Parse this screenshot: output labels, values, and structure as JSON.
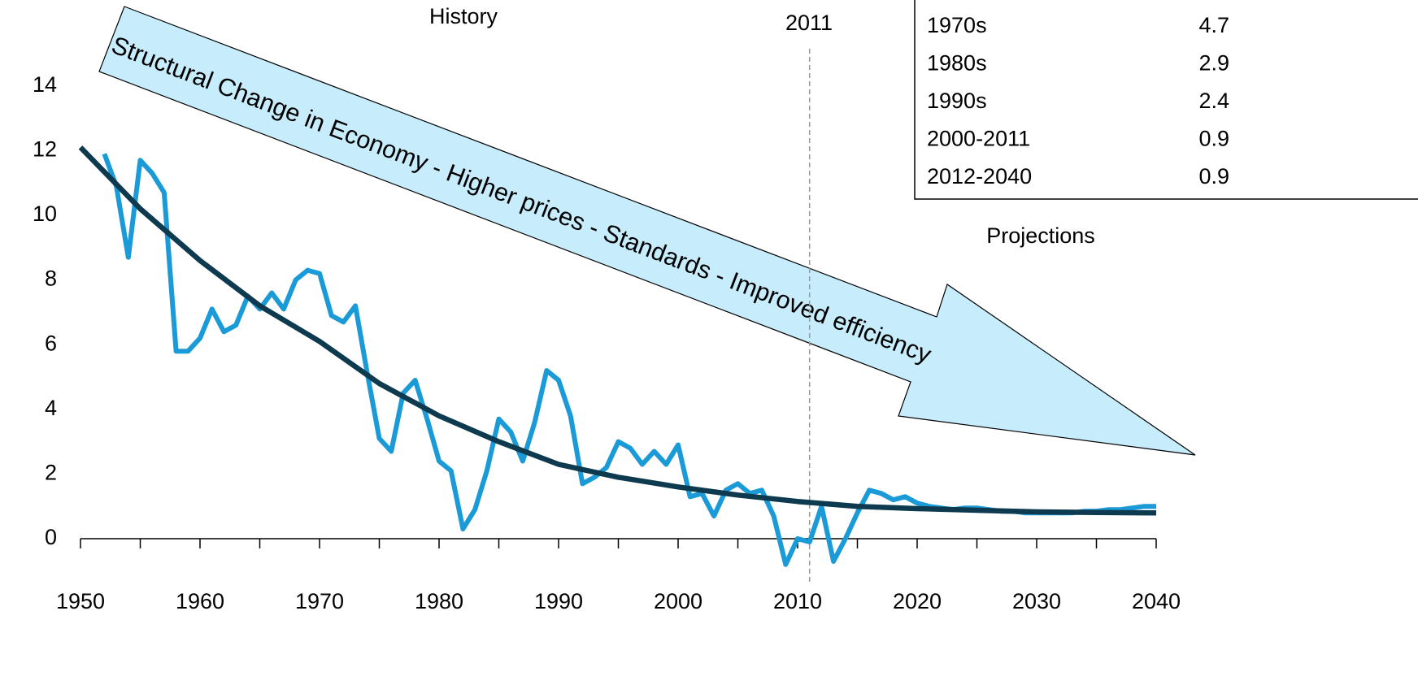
{
  "chart_data": {
    "type": "line",
    "annotations": {
      "history": "History",
      "projections": "Projections",
      "year_marker": "2011",
      "arrow_text": "Structural Change in Economy - Higher prices - Standards - Improved efficiency"
    },
    "marker_x": 2011,
    "xlim": [
      1950,
      2040
    ],
    "xticks": [
      1950,
      1960,
      1970,
      1980,
      1990,
      2000,
      2010,
      2020,
      2030,
      2040
    ],
    "ylim": [
      -2,
      15
    ],
    "yticks": [
      0,
      2,
      4,
      6,
      8,
      10,
      12,
      14
    ],
    "series": [
      {
        "color": "#1a9ad6",
        "x": [
          1952,
          1953,
          1954,
          1955,
          1956,
          1957,
          1958,
          1959,
          1960,
          1961,
          1962,
          1963,
          1964,
          1965,
          1966,
          1967,
          1968,
          1969,
          1970,
          1971,
          1972,
          1973,
          1974,
          1975,
          1976,
          1977,
          1978,
          1979,
          1980,
          1981,
          1982,
          1983,
          1984,
          1985,
          1986,
          1987,
          1988,
          1989,
          1990,
          1991,
          1992,
          1993,
          1994,
          1995,
          1996,
          1997,
          1998,
          1999,
          2000,
          2001,
          2002,
          2003,
          2004,
          2005,
          2006,
          2007,
          2008,
          2009,
          2010,
          2011,
          2012,
          2013,
          2014,
          2015,
          2016,
          2017,
          2018,
          2019,
          2020,
          2021,
          2022,
          2023,
          2024,
          2025,
          2026,
          2027,
          2028,
          2029,
          2030,
          2031,
          2032,
          2033,
          2034,
          2035,
          2036,
          2037,
          2038,
          2039,
          2040
        ],
        "values": [
          11.9,
          10.9,
          8.7,
          11.7,
          11.3,
          10.7,
          5.8,
          5.8,
          6.2,
          7.1,
          6.4,
          6.6,
          7.5,
          7.1,
          7.6,
          7.1,
          8.0,
          8.3,
          8.2,
          6.9,
          6.7,
          7.2,
          5.1,
          3.1,
          2.7,
          4.5,
          4.9,
          3.7,
          2.4,
          2.1,
          0.3,
          0.9,
          2.1,
          3.7,
          3.3,
          2.4,
          3.6,
          5.2,
          4.9,
          3.8,
          1.7,
          1.9,
          2.2,
          3.0,
          2.8,
          2.3,
          2.7,
          2.3,
          2.9,
          1.3,
          1.4,
          0.7,
          1.5,
          1.7,
          1.4,
          1.5,
          0.7,
          -0.8,
          0.0,
          -0.1,
          1.0,
          -0.7,
          0.0,
          0.8,
          1.5,
          1.4,
          1.2,
          1.3,
          1.1,
          1.0,
          0.95,
          0.9,
          0.95,
          0.95,
          0.9,
          0.85,
          0.85,
          0.8,
          0.8,
          0.8,
          0.8,
          0.8,
          0.85,
          0.85,
          0.9,
          0.9,
          0.95,
          1.0,
          1.0
        ]
      },
      {
        "color": "#0e3a4f",
        "x": [
          1950,
          1955,
          1960,
          1965,
          1970,
          1975,
          1980,
          1985,
          1990,
          1995,
          2000,
          2005,
          2010,
          2015,
          2020,
          2025,
          2030,
          2035,
          2040
        ],
        "values": [
          12.1,
          10.2,
          8.6,
          7.2,
          6.1,
          4.8,
          3.8,
          3.0,
          2.3,
          1.9,
          1.6,
          1.35,
          1.15,
          1.0,
          0.93,
          0.88,
          0.83,
          0.81,
          0.8
        ]
      }
    ],
    "table": {
      "rows": [
        [
          "1970s",
          4.7
        ],
        [
          "1980s",
          2.9
        ],
        [
          "1990s",
          2.4
        ],
        [
          "2000-2011",
          0.9
        ],
        [
          "2012-2040",
          0.9
        ]
      ]
    }
  }
}
